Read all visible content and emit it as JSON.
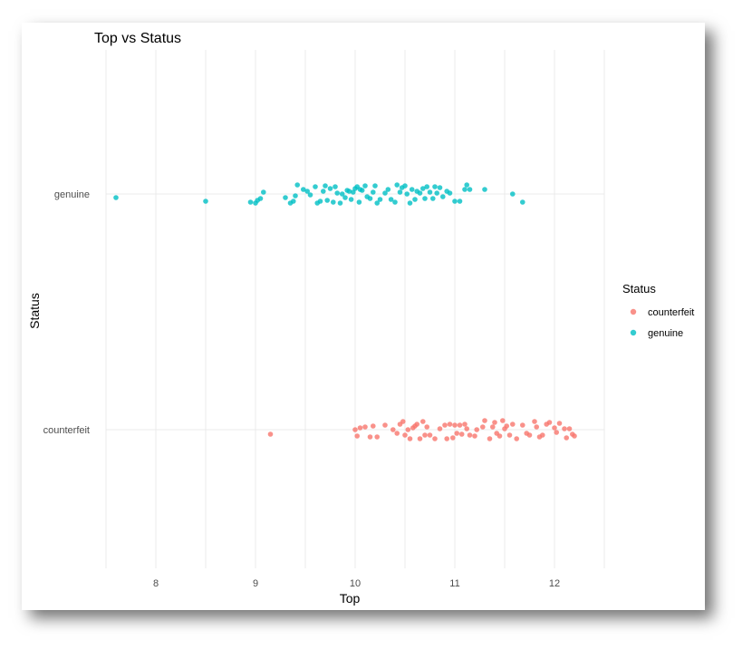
{
  "chart_data": {
    "type": "scatter",
    "title": "Top vs Status",
    "xlabel": "Top",
    "ylabel": "Status",
    "xlim": [
      7.5,
      12.5
    ],
    "x_ticks": [
      8,
      9,
      10,
      11,
      12
    ],
    "categories": [
      "counterfeit",
      "genuine"
    ],
    "grid": true,
    "legend": {
      "title": "Status",
      "position": "right"
    },
    "colors": {
      "counterfeit": "#F8766D",
      "genuine": "#00BFC4"
    },
    "series": [
      {
        "name": "genuine",
        "points": [
          [
            7.6,
            -0.04
          ],
          [
            8.5,
            -0.08
          ],
          [
            8.95,
            -0.09
          ],
          [
            9.0,
            -0.1
          ],
          [
            9.02,
            -0.07
          ],
          [
            9.05,
            -0.05
          ],
          [
            9.08,
            0.02
          ],
          [
            9.3,
            -0.04
          ],
          [
            9.35,
            -0.1
          ],
          [
            9.38,
            -0.08
          ],
          [
            9.4,
            -0.02
          ],
          [
            9.42,
            0.1
          ],
          [
            9.48,
            0.05
          ],
          [
            9.52,
            0.03
          ],
          [
            9.55,
            -0.01
          ],
          [
            9.6,
            0.08
          ],
          [
            9.62,
            -0.1
          ],
          [
            9.65,
            -0.08
          ],
          [
            9.68,
            0.03
          ],
          [
            9.7,
            0.09
          ],
          [
            9.72,
            -0.07
          ],
          [
            9.75,
            0.06
          ],
          [
            9.78,
            -0.09
          ],
          [
            9.8,
            0.08
          ],
          [
            9.82,
            0.01
          ],
          [
            9.85,
            -0.1
          ],
          [
            9.87,
            0.0
          ],
          [
            9.9,
            -0.04
          ],
          [
            9.92,
            0.04
          ],
          [
            9.94,
            0.03
          ],
          [
            9.96,
            -0.06
          ],
          [
            9.98,
            0.02
          ],
          [
            10.0,
            0.06
          ],
          [
            10.02,
            0.08
          ],
          [
            10.04,
            -0.09
          ],
          [
            10.05,
            0.05
          ],
          [
            10.07,
            0.04
          ],
          [
            10.1,
            0.09
          ],
          [
            10.12,
            -0.03
          ],
          [
            10.15,
            -0.05
          ],
          [
            10.18,
            0.02
          ],
          [
            10.2,
            0.09
          ],
          [
            10.22,
            -0.1
          ],
          [
            10.25,
            -0.06
          ],
          [
            10.3,
            0.01
          ],
          [
            10.33,
            0.05
          ],
          [
            10.36,
            -0.06
          ],
          [
            10.4,
            -0.09
          ],
          [
            10.42,
            0.1
          ],
          [
            10.45,
            0.02
          ],
          [
            10.47,
            0.07
          ],
          [
            10.5,
            0.09
          ],
          [
            10.52,
            0.0
          ],
          [
            10.55,
            -0.1
          ],
          [
            10.57,
            0.05
          ],
          [
            10.6,
            -0.06
          ],
          [
            10.62,
            0.03
          ],
          [
            10.65,
            0.01
          ],
          [
            10.68,
            0.06
          ],
          [
            10.7,
            -0.05
          ],
          [
            10.72,
            0.08
          ],
          [
            10.75,
            0.02
          ],
          [
            10.78,
            -0.05
          ],
          [
            10.8,
            0.08
          ],
          [
            10.82,
            0.01
          ],
          [
            10.85,
            0.07
          ],
          [
            10.88,
            -0.03
          ],
          [
            10.92,
            0.03
          ],
          [
            10.95,
            0.01
          ],
          [
            11.0,
            -0.08
          ],
          [
            11.05,
            -0.08
          ],
          [
            11.1,
            0.05
          ],
          [
            11.12,
            0.1
          ],
          [
            11.15,
            0.05
          ],
          [
            11.3,
            0.05
          ],
          [
            11.58,
            0.0
          ],
          [
            11.68,
            -0.09
          ]
        ]
      },
      {
        "name": "counterfeit",
        "points": [
          [
            9.15,
            -0.05
          ],
          [
            10.0,
            0.0
          ],
          [
            10.02,
            -0.07
          ],
          [
            10.05,
            0.02
          ],
          [
            10.1,
            0.03
          ],
          [
            10.15,
            -0.08
          ],
          [
            10.18,
            0.04
          ],
          [
            10.22,
            -0.08
          ],
          [
            10.3,
            0.05
          ],
          [
            10.38,
            0.0
          ],
          [
            10.42,
            -0.04
          ],
          [
            10.45,
            0.06
          ],
          [
            10.48,
            0.09
          ],
          [
            10.5,
            -0.06
          ],
          [
            10.53,
            0.0
          ],
          [
            10.55,
            -0.1
          ],
          [
            10.58,
            0.02
          ],
          [
            10.6,
            0.04
          ],
          [
            10.62,
            0.06
          ],
          [
            10.65,
            -0.1
          ],
          [
            10.68,
            0.09
          ],
          [
            10.7,
            -0.06
          ],
          [
            10.72,
            0.03
          ],
          [
            10.75,
            -0.06
          ],
          [
            10.8,
            -0.1
          ],
          [
            10.85,
            0.01
          ],
          [
            10.9,
            0.05
          ],
          [
            10.92,
            -0.1
          ],
          [
            10.95,
            0.06
          ],
          [
            10.98,
            -0.09
          ],
          [
            11.0,
            0.05
          ],
          [
            11.02,
            -0.04
          ],
          [
            11.05,
            0.05
          ],
          [
            11.07,
            -0.05
          ],
          [
            11.1,
            0.06
          ],
          [
            11.12,
            0.01
          ],
          [
            11.15,
            -0.06
          ],
          [
            11.2,
            -0.07
          ],
          [
            11.22,
            0.0
          ],
          [
            11.28,
            0.03
          ],
          [
            11.3,
            0.1
          ],
          [
            11.35,
            -0.1
          ],
          [
            11.38,
            0.03
          ],
          [
            11.4,
            0.08
          ],
          [
            11.42,
            -0.04
          ],
          [
            11.45,
            -0.07
          ],
          [
            11.48,
            0.1
          ],
          [
            11.5,
            0.01
          ],
          [
            11.52,
            0.04
          ],
          [
            11.55,
            -0.06
          ],
          [
            11.58,
            0.06
          ],
          [
            11.62,
            -0.1
          ],
          [
            11.68,
            0.05
          ],
          [
            11.72,
            -0.04
          ],
          [
            11.75,
            -0.06
          ],
          [
            11.8,
            0.09
          ],
          [
            11.82,
            0.03
          ],
          [
            11.85,
            -0.08
          ],
          [
            11.88,
            -0.06
          ],
          [
            11.92,
            0.06
          ],
          [
            11.95,
            0.08
          ],
          [
            12.0,
            0.02
          ],
          [
            12.02,
            -0.03
          ],
          [
            12.05,
            0.07
          ],
          [
            12.1,
            0.01
          ],
          [
            12.12,
            -0.09
          ],
          [
            12.15,
            0.01
          ],
          [
            12.18,
            -0.05
          ],
          [
            12.2,
            -0.07
          ]
        ]
      }
    ]
  }
}
